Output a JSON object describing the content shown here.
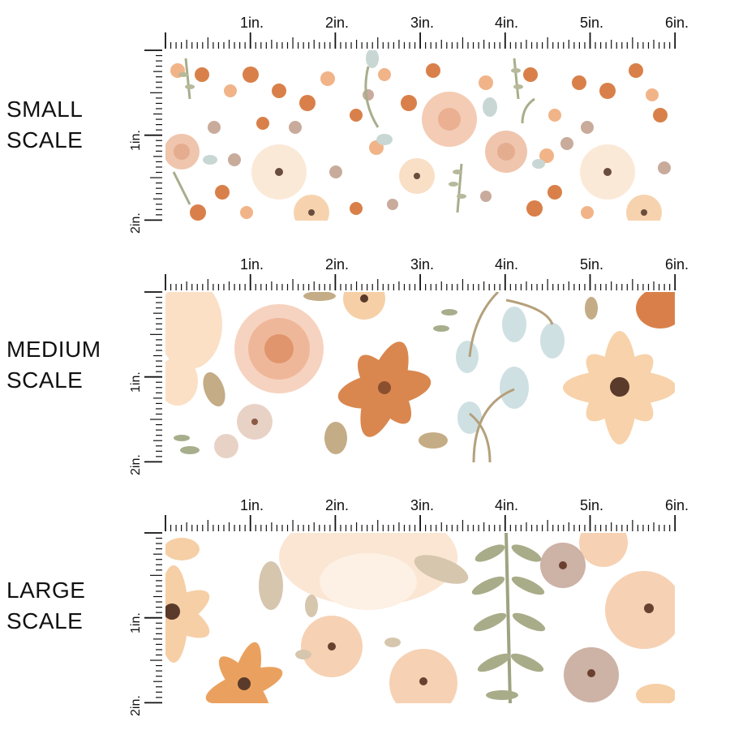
{
  "ruler": {
    "horizontal_labels": [
      "1in.",
      "2in.",
      "3in.",
      "4in.",
      "5in.",
      "6in."
    ],
    "vertical_labels": [
      "1in.",
      "2in."
    ]
  },
  "sections": [
    {
      "line1": "SMALL",
      "line2": "SCALE"
    },
    {
      "line1": "MEDIUM",
      "line2": "SCALE"
    },
    {
      "line1": "LARGE",
      "line2": "SCALE"
    }
  ],
  "colors": {
    "peach": "#f6cfa6",
    "rust": "#d9804a",
    "blush": "#efbfa5",
    "taupe": "#c9ab9c",
    "sage": "#a7ae8c",
    "mist": "#c8d7d4",
    "center": "#5a3a2a"
  }
}
